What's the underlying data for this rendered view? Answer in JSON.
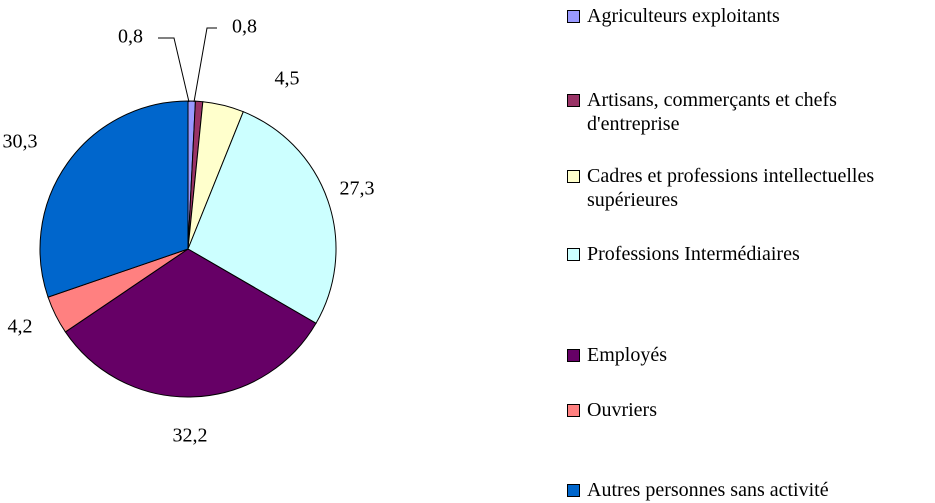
{
  "chart_data": {
    "type": "pie",
    "categories": [
      "Agriculteurs exploitants",
      "Artisans, commerçants et chefs d'entreprise",
      "Cadres et professions intellectuelles supérieures",
      "Professions Intermédiaires",
      "Employés",
      "Ouvriers",
      "Autres personnes sans activité"
    ],
    "values": [
      0.8,
      0.8,
      4.5,
      27.3,
      32.2,
      4.2,
      30.3
    ],
    "value_labels": [
      "0,8",
      "0,8",
      "4,5",
      "27,3",
      "32,2",
      "4,2",
      "30,3"
    ],
    "colors": [
      "#9999ff",
      "#993366",
      "#ffffcc",
      "#ccffff",
      "#660066",
      "#ff8080",
      "#0066cc"
    ],
    "legend": "right"
  }
}
